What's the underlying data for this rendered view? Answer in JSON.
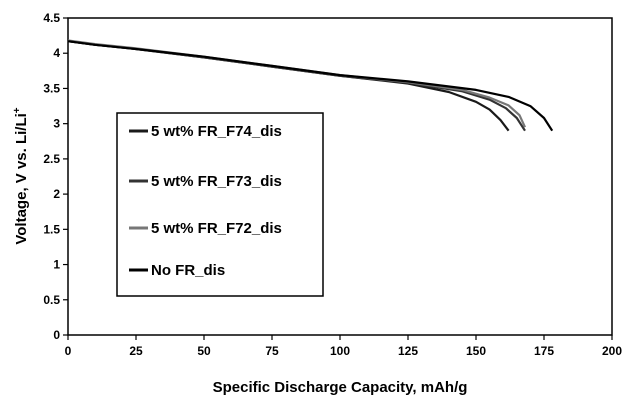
{
  "chart_data": {
    "type": "line",
    "xlabel": "Specific Discharge Capacity, mAh/g",
    "ylabel": "Voltage, V vs. Li/Li",
    "ylabel_superscript": "+",
    "xlim": [
      0,
      200
    ],
    "ylim": [
      0,
      4.5
    ],
    "xticks": [
      "0",
      "25",
      "50",
      "75",
      "100",
      "125",
      "150",
      "175",
      "200"
    ],
    "yticks": [
      "0",
      "0.5",
      "1",
      "1.5",
      "2",
      "2.5",
      "3",
      "3.5",
      "4",
      "4.5"
    ],
    "grid": false,
    "legend_position": "left",
    "series": [
      {
        "name": "5 wt% FR_F74_dis",
        "color": "#1a1a1a",
        "points": [
          [
            0,
            4.17
          ],
          [
            10,
            4.12
          ],
          [
            25,
            4.06
          ],
          [
            50,
            3.94
          ],
          [
            75,
            3.81
          ],
          [
            100,
            3.68
          ],
          [
            125,
            3.57
          ],
          [
            140,
            3.45
          ],
          [
            150,
            3.31
          ],
          [
            155,
            3.2
          ],
          [
            159,
            3.05
          ],
          [
            162,
            2.9
          ]
        ]
      },
      {
        "name": "5 wt% FR_F73_dis",
        "color": "#333333",
        "points": [
          [
            0,
            4.17
          ],
          [
            10,
            4.12
          ],
          [
            25,
            4.06
          ],
          [
            50,
            3.94
          ],
          [
            75,
            3.81
          ],
          [
            100,
            3.68
          ],
          [
            125,
            3.58
          ],
          [
            145,
            3.46
          ],
          [
            155,
            3.34
          ],
          [
            161,
            3.22
          ],
          [
            165,
            3.08
          ],
          [
            168,
            2.9
          ]
        ]
      },
      {
        "name": "5 wt% FR_F72_dis",
        "color": "#777777",
        "points": [
          [
            0,
            4.18
          ],
          [
            10,
            4.13
          ],
          [
            25,
            4.07
          ],
          [
            50,
            3.95
          ],
          [
            75,
            3.82
          ],
          [
            100,
            3.69
          ],
          [
            125,
            3.59
          ],
          [
            145,
            3.48
          ],
          [
            155,
            3.37
          ],
          [
            162,
            3.26
          ],
          [
            166,
            3.12
          ],
          [
            168,
            2.95
          ]
        ]
      },
      {
        "name": "No FR_dis",
        "color": "#000000",
        "points": [
          [
            0,
            4.17
          ],
          [
            10,
            4.12
          ],
          [
            25,
            4.06
          ],
          [
            50,
            3.95
          ],
          [
            75,
            3.82
          ],
          [
            100,
            3.69
          ],
          [
            125,
            3.6
          ],
          [
            150,
            3.48
          ],
          [
            162,
            3.38
          ],
          [
            170,
            3.25
          ],
          [
            175,
            3.08
          ],
          [
            178,
            2.9
          ]
        ]
      }
    ]
  }
}
